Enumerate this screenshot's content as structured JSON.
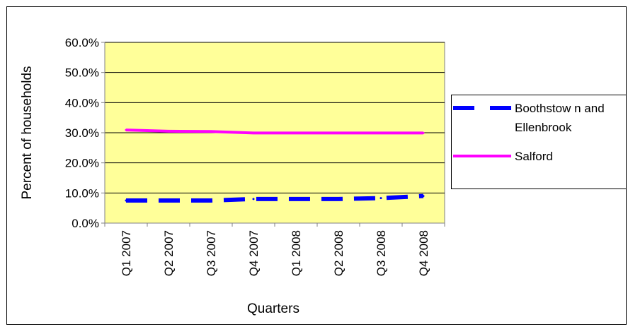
{
  "chart_data": {
    "type": "line",
    "title": "",
    "xlabel": "Quarters",
    "ylabel": "Percent of households",
    "categories": [
      "Q1 2007",
      "Q2 2007",
      "Q3 2007",
      "Q4 2007",
      "Q1 2008",
      "Q2 2008",
      "Q3 2008",
      "Q4 2008"
    ],
    "ylim": [
      0,
      0.6
    ],
    "yticks": [
      0,
      0.1,
      0.2,
      0.3,
      0.4,
      0.5,
      0.6
    ],
    "ytick_labels": [
      "0.0%",
      "10.0%",
      "20.0%",
      "30.0%",
      "40.0%",
      "50.0%",
      "60.0%"
    ],
    "grid": true,
    "legend_position": "right",
    "plot_background": "#FFFF99",
    "series": [
      {
        "name": "Boothstow n and Ellenbrook",
        "legend_lines": [
          "Boothstow n and",
          "Ellenbrook"
        ],
        "color": "#0000FF",
        "style": "dashed",
        "values": [
          0.075,
          0.075,
          0.075,
          0.08,
          0.08,
          0.08,
          0.083,
          0.09
        ]
      },
      {
        "name": "Salford",
        "legend_lines": [
          "Salford"
        ],
        "color": "#FF00FF",
        "style": "solid",
        "values": [
          0.309,
          0.305,
          0.304,
          0.299,
          0.299,
          0.299,
          0.299,
          0.299
        ]
      }
    ]
  }
}
